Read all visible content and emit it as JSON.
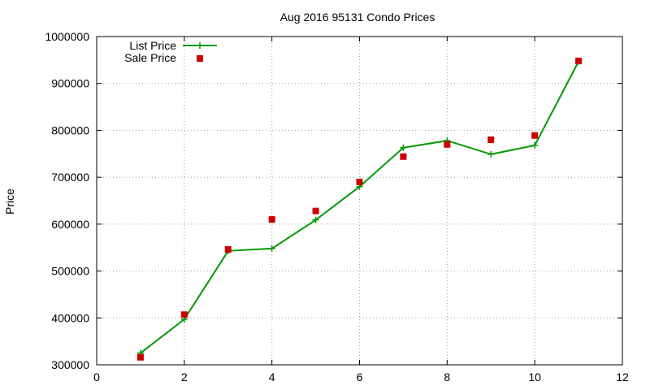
{
  "chart_data": {
    "type": "line",
    "title": "Aug 2016 95131 Condo Prices",
    "xlabel": "",
    "ylabel": "Price",
    "xlim": [
      0,
      12
    ],
    "ylim": [
      300000,
      1000000
    ],
    "x_ticks": [
      "0",
      "2",
      "4",
      "6",
      "8",
      "10",
      "12"
    ],
    "y_ticks": [
      "300000",
      "400000",
      "500000",
      "600000",
      "700000",
      "800000",
      "900000",
      "1000000"
    ],
    "grid": true,
    "legend_position": "top-left",
    "series": [
      {
        "name": "List Price",
        "style": "line-with-plus-markers",
        "color": "#009900",
        "x": [
          1,
          2,
          3,
          4,
          5,
          6,
          7,
          8,
          9,
          10,
          11
        ],
        "y": [
          325000,
          397000,
          543000,
          548000,
          609000,
          680000,
          763000,
          778000,
          749000,
          768000,
          947000
        ]
      },
      {
        "name": "Sale Price",
        "style": "square-markers",
        "color": "#cc0000",
        "x": [
          1,
          2,
          3,
          4,
          5,
          6,
          7,
          8,
          9,
          10,
          11
        ],
        "y": [
          316000,
          407000,
          546000,
          610000,
          628000,
          690000,
          744000,
          770000,
          780000,
          789000,
          948000
        ]
      }
    ]
  }
}
